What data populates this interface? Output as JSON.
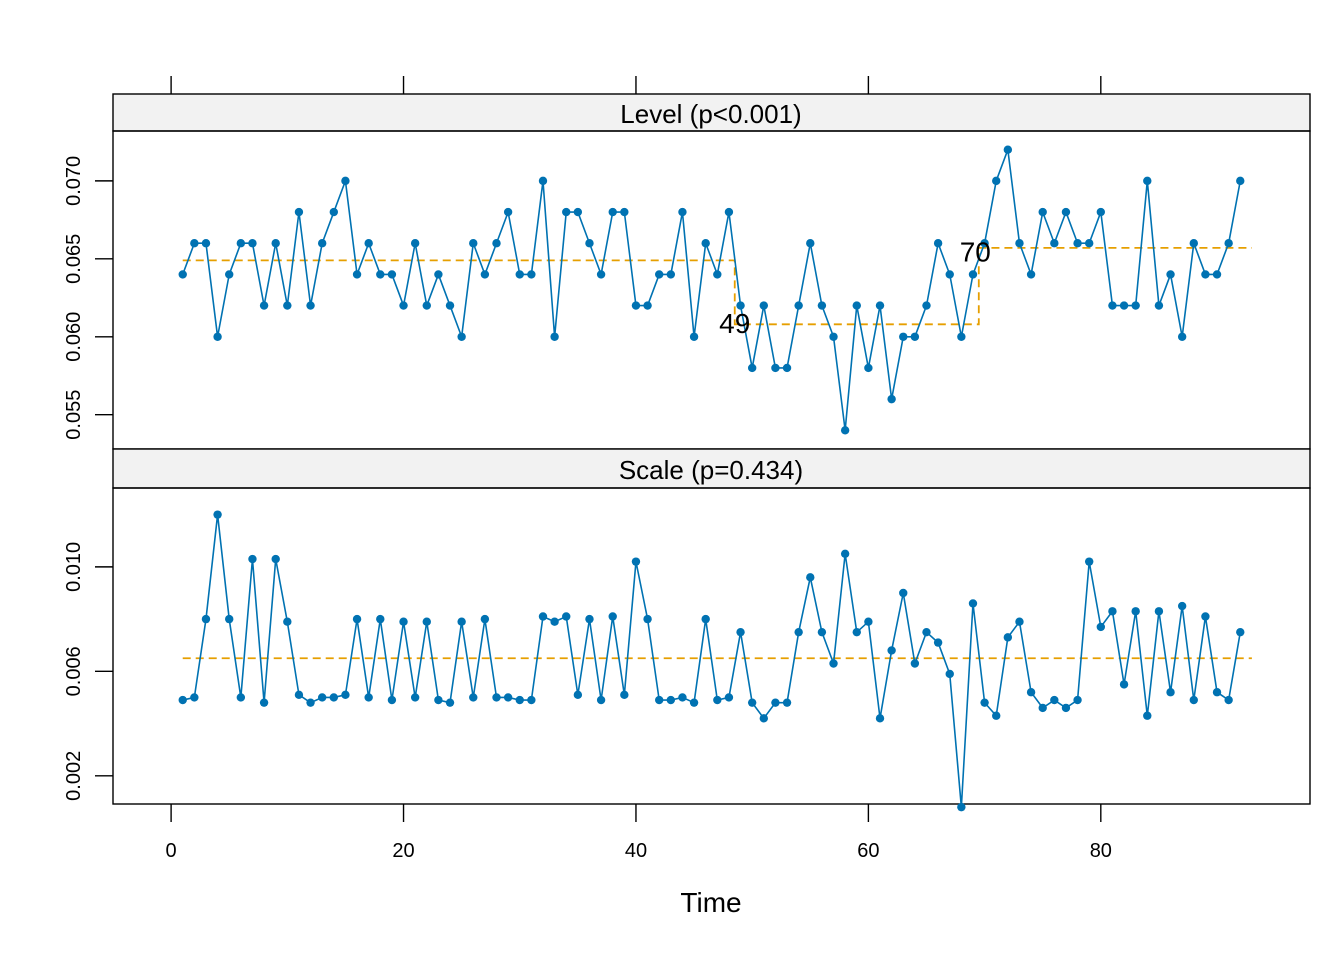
{
  "colors": {
    "series": "#0072B2",
    "fit": "#E69F00"
  },
  "chart_data": {
    "type": "line",
    "xlabel": "Time",
    "xlim": [
      -5,
      98
    ],
    "xticks": [
      0,
      20,
      40,
      60,
      80
    ],
    "panels": [
      {
        "name": "level",
        "strip_label": "Level (p<0.001)",
        "ylim": [
          0.0528,
          0.0732
        ],
        "yticks": [
          0.055,
          0.06,
          0.065,
          0.07
        ],
        "ytick_labels": [
          "0.055",
          "0.060",
          "0.065",
          "0.070"
        ],
        "x": [
          1,
          2,
          3,
          4,
          5,
          6,
          7,
          8,
          9,
          10,
          11,
          12,
          13,
          14,
          15,
          16,
          17,
          18,
          19,
          20,
          21,
          22,
          23,
          24,
          25,
          26,
          27,
          28,
          29,
          30,
          31,
          32,
          33,
          34,
          35,
          36,
          37,
          38,
          39,
          40,
          41,
          42,
          43,
          44,
          45,
          46,
          47,
          48,
          49,
          50,
          51,
          52,
          53,
          54,
          55,
          56,
          57,
          58,
          59,
          60,
          61,
          62,
          63,
          64,
          65,
          66,
          67,
          68,
          69,
          70,
          71,
          72,
          73,
          74,
          75,
          76,
          77,
          78,
          79,
          80,
          81,
          82,
          83,
          84,
          85,
          86,
          87,
          88,
          89,
          90,
          91,
          92
        ],
        "values": [
          0.064,
          0.066,
          0.066,
          0.06,
          0.064,
          0.066,
          0.066,
          0.062,
          0.066,
          0.062,
          0.068,
          0.062,
          0.066,
          0.068,
          0.07,
          0.064,
          0.066,
          0.064,
          0.064,
          0.062,
          0.066,
          0.062,
          0.064,
          0.062,
          0.06,
          0.066,
          0.064,
          0.066,
          0.068,
          0.064,
          0.064,
          0.07,
          0.06,
          0.068,
          0.068,
          0.066,
          0.064,
          0.068,
          0.068,
          0.062,
          0.062,
          0.064,
          0.064,
          0.068,
          0.06,
          0.066,
          0.064,
          0.068,
          0.062,
          0.058,
          0.062,
          0.058,
          0.058,
          0.062,
          0.066,
          0.062,
          0.06,
          0.054,
          0.062,
          0.058,
          0.062,
          0.056,
          0.06,
          0.06,
          0.062,
          0.066,
          0.064,
          0.06,
          0.064,
          0.066,
          0.07,
          0.072,
          0.066,
          0.064,
          0.068,
          0.066,
          0.068,
          0.066,
          0.066,
          0.068,
          0.062,
          0.062,
          0.062,
          0.07,
          0.062,
          0.064,
          0.06,
          0.066,
          0.064,
          0.064,
          0.066,
          0.07
        ],
        "fit_segments": [
          {
            "x_start": 1,
            "x_end": 48.5,
            "value": 0.0649
          },
          {
            "x_start": 48.5,
            "x_end": 69.5,
            "value": 0.0608
          },
          {
            "x_start": 69.5,
            "x_end": 93,
            "value": 0.0657
          }
        ],
        "changepoints": [
          {
            "label": "49",
            "x": 48.5,
            "y": 0.0607
          },
          {
            "label": "70",
            "x": 69.2,
            "y": 0.0653
          }
        ]
      },
      {
        "name": "scale",
        "strip_label": "Scale (p=0.434)",
        "ylim": [
          0.00092,
          0.01302
        ],
        "yticks": [
          0.002,
          0.006,
          0.01
        ],
        "ytick_labels": [
          "0.002",
          "0.006",
          "0.010"
        ],
        "x": [
          1,
          2,
          3,
          4,
          5,
          6,
          7,
          8,
          9,
          10,
          11,
          12,
          13,
          14,
          15,
          16,
          17,
          18,
          19,
          20,
          21,
          22,
          23,
          24,
          25,
          26,
          27,
          28,
          29,
          30,
          31,
          32,
          33,
          34,
          35,
          36,
          37,
          38,
          39,
          40,
          41,
          42,
          43,
          44,
          45,
          46,
          47,
          48,
          49,
          50,
          51,
          52,
          53,
          54,
          55,
          56,
          57,
          58,
          59,
          60,
          61,
          62,
          63,
          64,
          65,
          66,
          67,
          68,
          69,
          70,
          71,
          72,
          73,
          74,
          75,
          76,
          77,
          78,
          79,
          80,
          81,
          82,
          83,
          84,
          85,
          86,
          87,
          88,
          89,
          90,
          91,
          92
        ],
        "values": [
          0.0049,
          0.005,
          0.008,
          0.012,
          0.008,
          0.005,
          0.0103,
          0.0048,
          0.0103,
          0.0079,
          0.0051,
          0.0048,
          0.005,
          0.005,
          0.0051,
          0.008,
          0.005,
          0.008,
          0.0049,
          0.0079,
          0.005,
          0.0079,
          0.0049,
          0.0048,
          0.0079,
          0.005,
          0.008,
          0.005,
          0.005,
          0.0049,
          0.0049,
          0.0081,
          0.0079,
          0.0081,
          0.0051,
          0.008,
          0.0049,
          0.0081,
          0.0051,
          0.0102,
          0.008,
          0.0049,
          0.0049,
          0.005,
          0.0048,
          0.008,
          0.0049,
          0.005,
          0.0075,
          0.0048,
          0.0042,
          0.0048,
          0.0048,
          0.0075,
          0.0096,
          0.0075,
          0.0063,
          0.0105,
          0.0075,
          0.0079,
          0.0042,
          0.0068,
          0.009,
          0.0063,
          0.0075,
          0.0071,
          0.0059,
          0.0008,
          0.0086,
          0.0048,
          0.0043,
          0.0073,
          0.0079,
          0.0052,
          0.0046,
          0.0049,
          0.0046,
          0.0049,
          0.0102,
          0.0077,
          0.0083,
          0.0055,
          0.0083,
          0.0043,
          0.0083,
          0.0052,
          0.0085,
          0.0049,
          0.0081,
          0.0052,
          0.0049,
          0.0075
        ],
        "fit_segments": [
          {
            "x_start": 1,
            "x_end": 93,
            "value": 0.0065
          }
        ],
        "changepoints": []
      }
    ]
  }
}
